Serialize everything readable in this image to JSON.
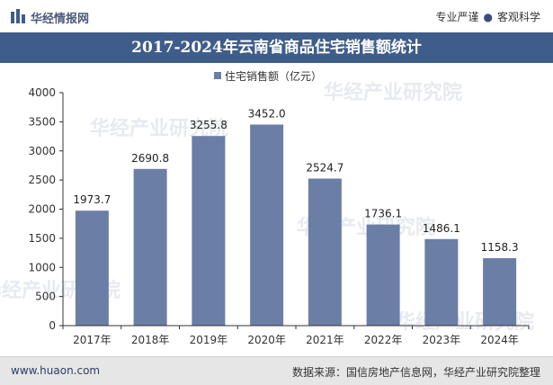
{
  "header": {
    "brand": "华经情报网",
    "slogan_left": "专业严谨",
    "slogan_right": "客观科学"
  },
  "chart_data": {
    "type": "bar",
    "title": "2017-2024年云南省商品住宅销售额统计",
    "legend": {
      "label": "住宅销售额（亿元）",
      "placement": "top-center"
    },
    "categories": [
      "2017年",
      "2018年",
      "2019年",
      "2020年",
      "2021年",
      "2022年",
      "2023年",
      "2024年"
    ],
    "series": [
      {
        "name": "住宅销售额（亿元）",
        "values": [
          1973.7,
          2690.8,
          3255.8,
          3452.0,
          2524.7,
          1736.1,
          1486.1,
          1158.3
        ]
      }
    ],
    "data_labels": [
      "1973.7",
      "2690.8",
      "3255.8",
      "3452.0",
      "2524.7",
      "1736.1",
      "1486.1",
      "1158.3"
    ],
    "ylim": [
      0,
      4000
    ],
    "yticks": [
      "0",
      "500",
      "1000",
      "1500",
      "2000",
      "2500",
      "3000",
      "3500",
      "4000"
    ],
    "grid": false,
    "bar_color": "#6b7ea6"
  },
  "watermark": "华经产业研究院",
  "footer": {
    "site": "www.huaon.com",
    "source": "数据来源：国信房地产信息网，华经产业研究院整理"
  }
}
